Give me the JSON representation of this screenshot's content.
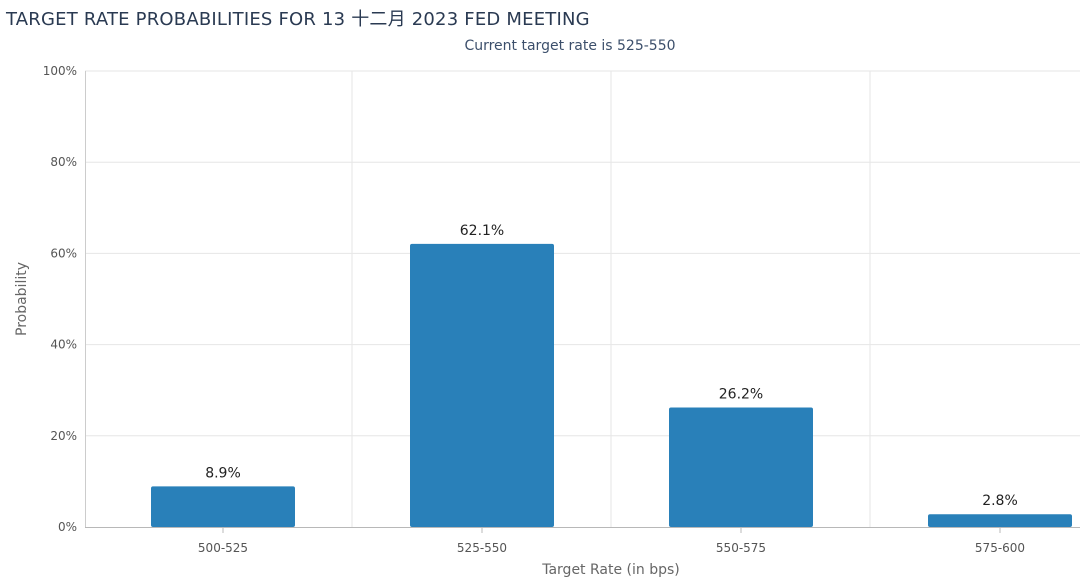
{
  "chart_data": {
    "type": "bar",
    "title": "TARGET RATE PROBABILITIES FOR 13 十二月 2023 FED MEETING",
    "subtitle": "Current target rate is 525-550",
    "categories": [
      "500-525",
      "525-550",
      "550-575",
      "575-600"
    ],
    "values": [
      8.9,
      62.1,
      26.2,
      2.8
    ],
    "data_labels": [
      "8.9%",
      "62.1%",
      "26.2%",
      "2.8%"
    ],
    "xlabel": "Target Rate (in bps)",
    "ylabel": "Probability",
    "ylim": [
      0,
      100
    ],
    "yticks": [
      "0%",
      "20%",
      "40%",
      "60%",
      "80%",
      "100%"
    ],
    "ytick_values": [
      0,
      20,
      40,
      60,
      80,
      100
    ],
    "grid": true,
    "bar_color": "#2980b9"
  }
}
